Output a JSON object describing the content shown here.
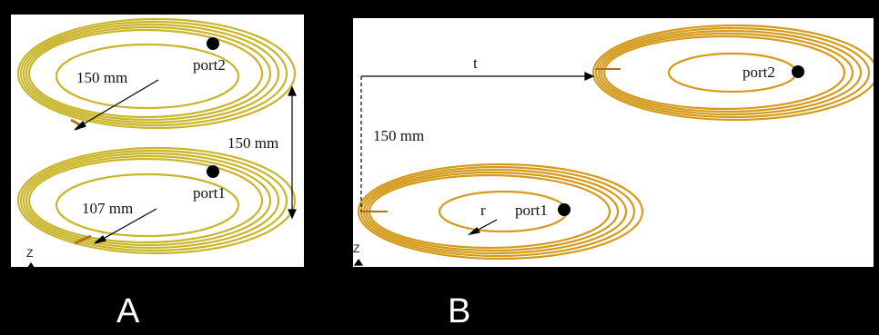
{
  "panel_a": {
    "letter": "A",
    "top_radius_label": "150 mm",
    "top_port_label": "port2",
    "separation_label": "150 mm",
    "bottom_radius_label": "107 mm",
    "bottom_port_label": "port1",
    "axis_label": "Z"
  },
  "panel_b": {
    "letter": "B",
    "offset_label": "t",
    "height_label": "150 mm",
    "top_port_label": "port2",
    "radius_label": "r",
    "bottom_port_label": "port1",
    "axis_label": "Z"
  },
  "colors": {
    "coil_a": "#c9b52a",
    "coil_b": "#d49a1c",
    "port": "#000000"
  }
}
